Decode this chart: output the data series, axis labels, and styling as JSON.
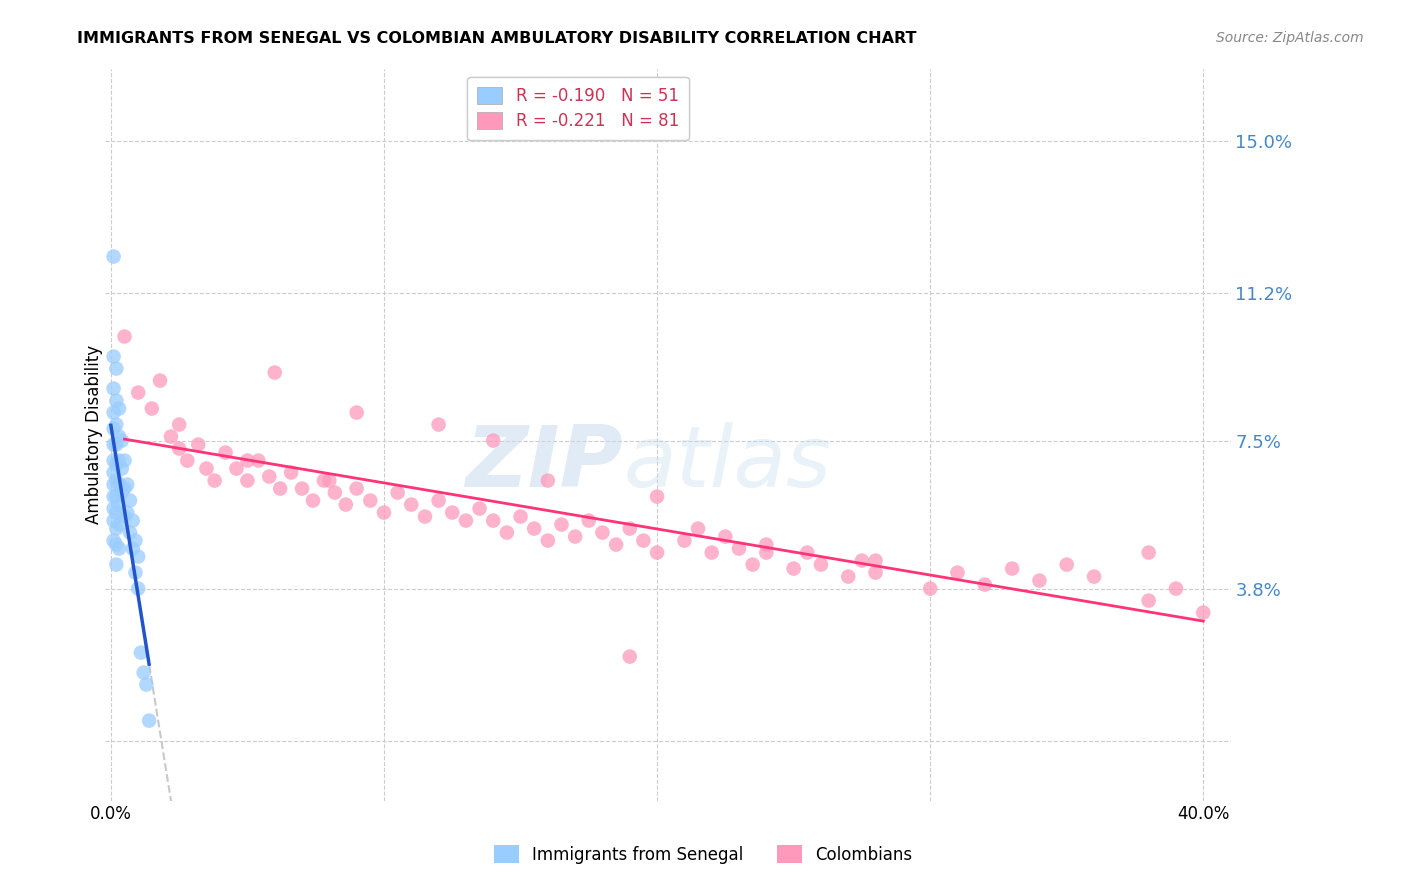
{
  "title": "IMMIGRANTS FROM SENEGAL VS COLOMBIAN AMBULATORY DISABILITY CORRELATION CHART",
  "source": "Source: ZipAtlas.com",
  "ylabel": "Ambulatory Disability",
  "yticks": [
    0.0,
    0.038,
    0.075,
    0.112,
    0.15
  ],
  "ytick_labels": [
    "",
    "3.8%",
    "7.5%",
    "11.2%",
    "15.0%"
  ],
  "xlim": [
    -0.002,
    0.41
  ],
  "ylim": [
    -0.015,
    0.168
  ],
  "color_blue": "#99CCFF",
  "color_pink": "#FF99BB",
  "color_trend_blue": "#2255CC",
  "color_trend_pink": "#FF3377",
  "color_trend_gray": "#BBBBBB",
  "watermark_zip": "ZIP",
  "watermark_atlas": "atlas",
  "senegal_x": [
    0.001,
    0.001,
    0.001,
    0.001,
    0.001,
    0.001,
    0.001,
    0.001,
    0.001,
    0.001,
    0.001,
    0.001,
    0.001,
    0.002,
    0.002,
    0.002,
    0.002,
    0.002,
    0.002,
    0.002,
    0.002,
    0.002,
    0.002,
    0.002,
    0.003,
    0.003,
    0.003,
    0.003,
    0.003,
    0.003,
    0.003,
    0.004,
    0.004,
    0.004,
    0.005,
    0.005,
    0.005,
    0.006,
    0.006,
    0.007,
    0.007,
    0.008,
    0.008,
    0.009,
    0.009,
    0.01,
    0.01,
    0.011,
    0.012,
    0.013,
    0.014
  ],
  "senegal_y": [
    0.121,
    0.096,
    0.088,
    0.082,
    0.078,
    0.074,
    0.07,
    0.067,
    0.064,
    0.061,
    0.058,
    0.055,
    0.05,
    0.093,
    0.085,
    0.079,
    0.074,
    0.069,
    0.065,
    0.061,
    0.057,
    0.053,
    0.049,
    0.044,
    0.083,
    0.076,
    0.07,
    0.064,
    0.059,
    0.054,
    0.048,
    0.075,
    0.068,
    0.062,
    0.07,
    0.063,
    0.056,
    0.064,
    0.057,
    0.06,
    0.052,
    0.055,
    0.048,
    0.05,
    0.042,
    0.046,
    0.038,
    0.022,
    0.017,
    0.014,
    0.005
  ],
  "colombian_x": [
    0.005,
    0.01,
    0.015,
    0.018,
    0.022,
    0.025,
    0.028,
    0.032,
    0.035,
    0.038,
    0.042,
    0.046,
    0.05,
    0.054,
    0.058,
    0.062,
    0.066,
    0.07,
    0.074,
    0.078,
    0.082,
    0.086,
    0.09,
    0.095,
    0.1,
    0.105,
    0.11,
    0.115,
    0.12,
    0.125,
    0.13,
    0.135,
    0.14,
    0.145,
    0.15,
    0.155,
    0.16,
    0.165,
    0.17,
    0.175,
    0.18,
    0.185,
    0.19,
    0.195,
    0.2,
    0.21,
    0.215,
    0.22,
    0.225,
    0.23,
    0.235,
    0.24,
    0.25,
    0.255,
    0.26,
    0.27,
    0.275,
    0.28,
    0.3,
    0.31,
    0.32,
    0.33,
    0.34,
    0.35,
    0.36,
    0.38,
    0.39,
    0.4,
    0.025,
    0.06,
    0.09,
    0.12,
    0.16,
    0.2,
    0.24,
    0.28,
    0.38,
    0.05,
    0.08,
    0.14,
    0.19
  ],
  "colombian_y": [
    0.101,
    0.087,
    0.083,
    0.09,
    0.076,
    0.073,
    0.07,
    0.074,
    0.068,
    0.065,
    0.072,
    0.068,
    0.065,
    0.07,
    0.066,
    0.063,
    0.067,
    0.063,
    0.06,
    0.065,
    0.062,
    0.059,
    0.063,
    0.06,
    0.057,
    0.062,
    0.059,
    0.056,
    0.06,
    0.057,
    0.055,
    0.058,
    0.055,
    0.052,
    0.056,
    0.053,
    0.05,
    0.054,
    0.051,
    0.055,
    0.052,
    0.049,
    0.053,
    0.05,
    0.047,
    0.05,
    0.053,
    0.047,
    0.051,
    0.048,
    0.044,
    0.047,
    0.043,
    0.047,
    0.044,
    0.041,
    0.045,
    0.042,
    0.038,
    0.042,
    0.039,
    0.043,
    0.04,
    0.044,
    0.041,
    0.035,
    0.038,
    0.032,
    0.079,
    0.092,
    0.082,
    0.079,
    0.065,
    0.061,
    0.049,
    0.045,
    0.047,
    0.07,
    0.065,
    0.075,
    0.021
  ]
}
